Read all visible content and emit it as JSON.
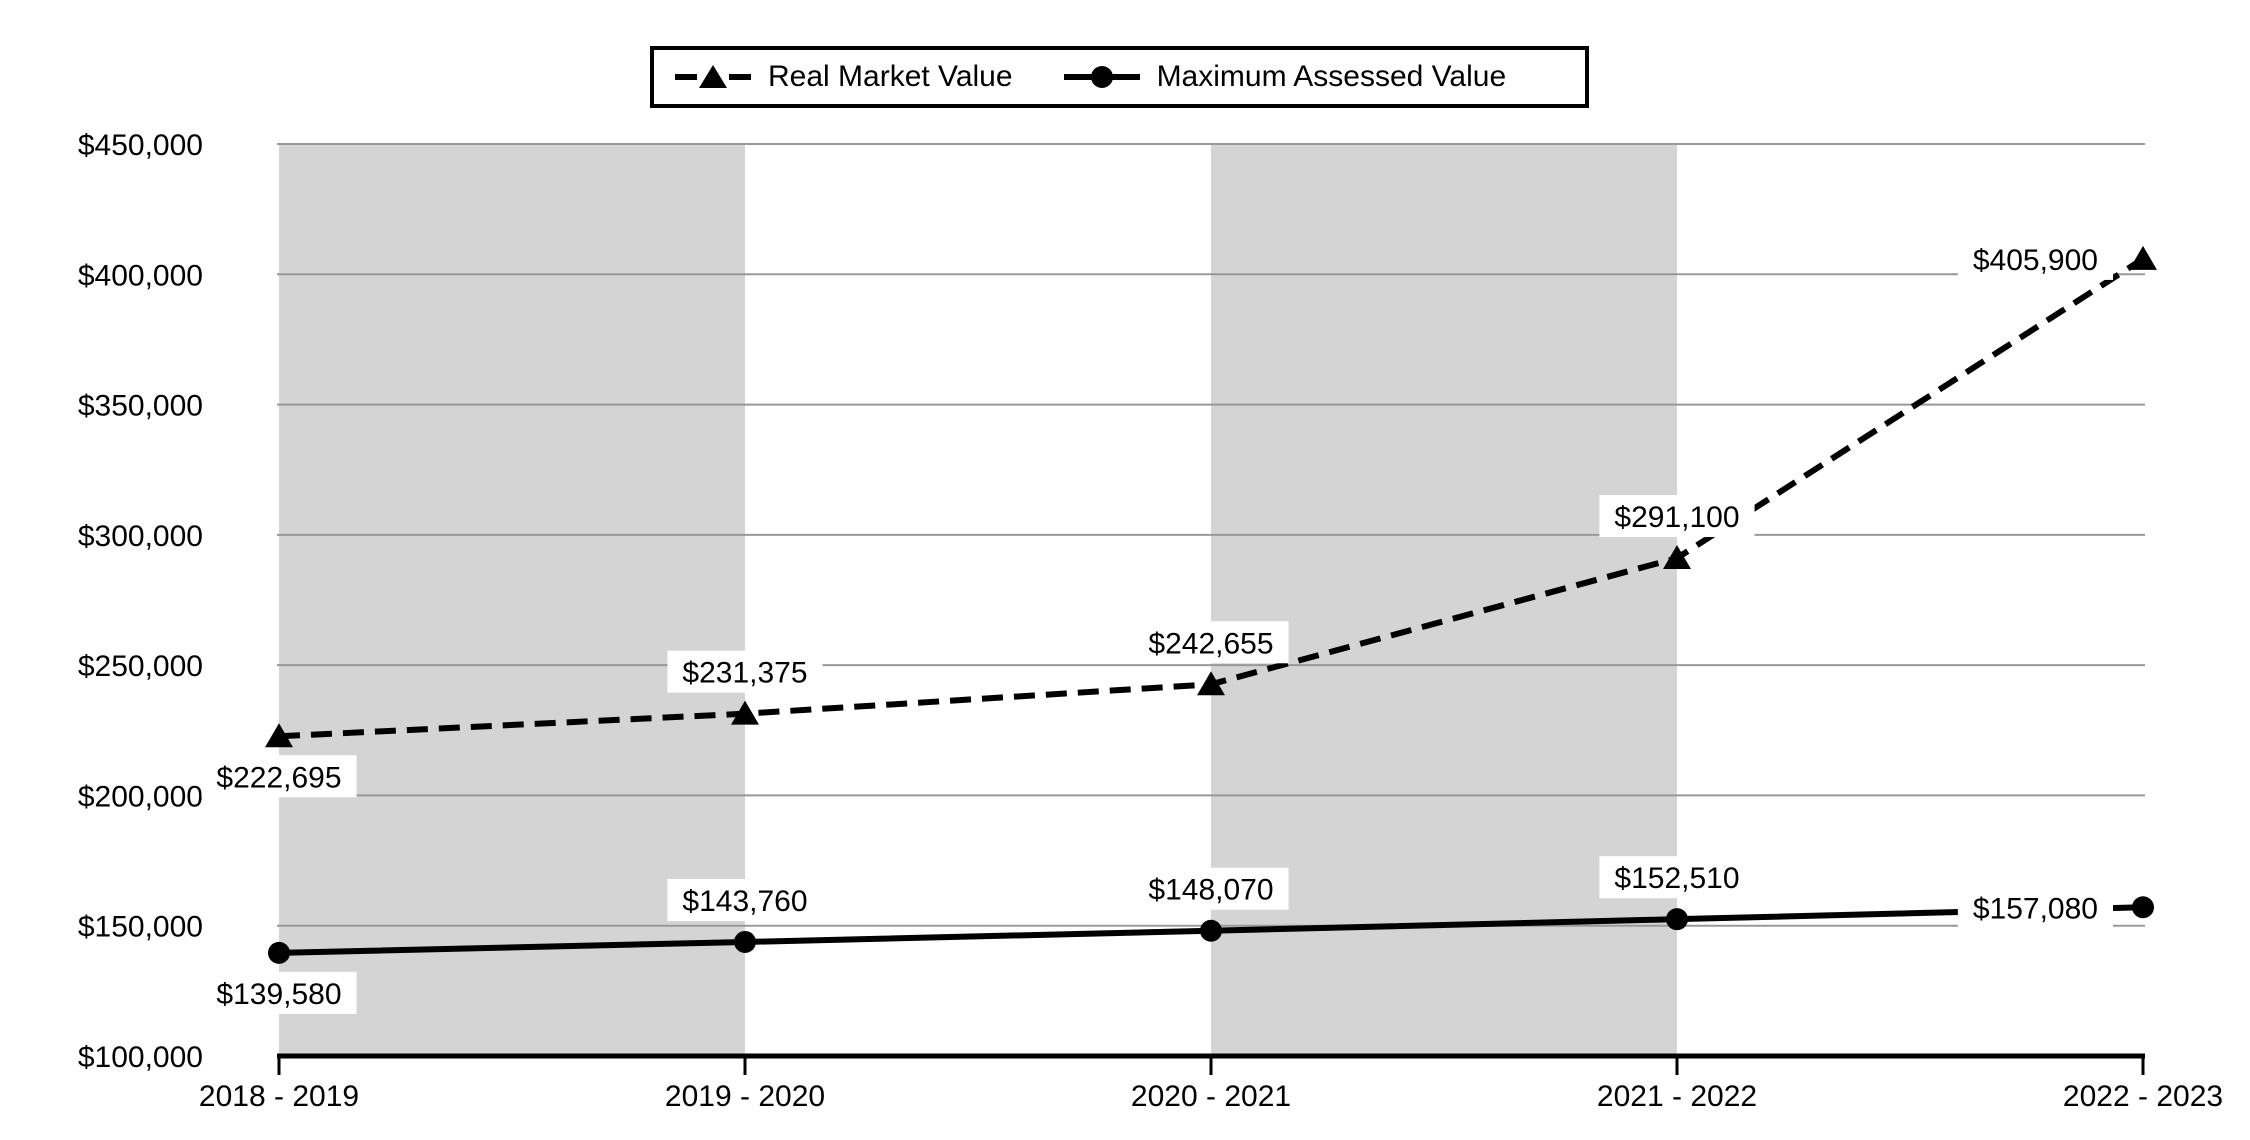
{
  "chart_data": {
    "type": "line",
    "categories": [
      "2018 - 2019",
      "2019 - 2020",
      "2020 - 2021",
      "2021 - 2022",
      "2022 - 2023"
    ],
    "series": [
      {
        "name": "Real Market Value",
        "marker": "triangle",
        "line_style": "dashed",
        "values": [
          222695,
          231375,
          242655,
          291100,
          405900
        ],
        "labels": [
          "$222,695",
          "$231,375",
          "$242,655",
          "$291,100",
          "$405,900"
        ],
        "label_placements": [
          "below",
          "above",
          "above",
          "above",
          "left"
        ]
      },
      {
        "name": "Maximum Assessed Value",
        "marker": "circle",
        "line_style": "solid",
        "values": [
          139580,
          143760,
          148070,
          152510,
          157080
        ],
        "labels": [
          "$139,580",
          "$143,760",
          "$148,070",
          "$152,510",
          "$157,080"
        ],
        "label_placements": [
          "below",
          "above",
          "above",
          "above",
          "left"
        ]
      }
    ],
    "y_axis": {
      "min": 100000,
      "max": 450000,
      "step": 50000,
      "tick_labels": [
        "$450,000",
        "$400,000",
        "$350,000",
        "$300,000",
        "$250,000",
        "$200,000",
        "$150,000",
        "$100,000"
      ]
    },
    "shaded_bands": [
      [
        0,
        1
      ],
      [
        2,
        3
      ]
    ],
    "legend_position": "top",
    "grid": true,
    "colors": {
      "band": "#d4d4d4",
      "gridline": "#999999",
      "series_line": "#000000",
      "axis_line": "#000000",
      "text": "#000000",
      "background": "#ffffff"
    }
  }
}
